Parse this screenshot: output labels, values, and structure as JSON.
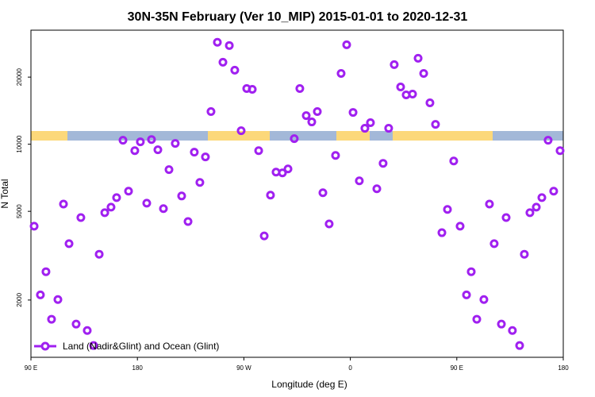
{
  "chart_data": {
    "type": "scatter",
    "title": "30N-35N February (Ver 10_MIP)   2015-01-01 to 2020-12-31",
    "x_label": "Longitude (deg E)",
    "y_label": "N Total",
    "x": [
      92.7,
      98.0,
      102.7,
      107.4,
      112.8,
      117.5,
      122.2,
      128.2,
      132.2,
      137.6,
      143.0,
      147.7,
      152.4,
      157.7,
      162.4,
      167.8,
      172.5,
      177.8,
      182.5,
      187.9,
      191.9,
      197.3,
      202.0,
      206.7,
      212.0,
      217.4,
      222.8,
      228.1,
      232.8,
      237.5,
      242.2,
      247.6,
      252.3,
      257.7,
      262.3,
      267.7,
      272.4,
      277.1,
      282.5,
      287.2,
      292.5,
      297.2,
      302.6,
      307.3,
      312.6,
      317.3,
      322.7,
      327.4,
      332.1,
      336.8,
      342.1,
      347.5,
      352.2,
      356.9,
      362.3,
      367.6,
      372.3,
      377.0,
      382.4,
      387.7,
      392.4,
      397.1,
      402.5,
      407.2,
      412.6,
      417.3,
      422.0,
      427.3,
      432.0,
      437.4,
      442.1,
      447.4,
      452.8,
      458.2,
      462.2,
      466.9,
      472.9,
      477.6,
      481.6,
      487.7,
      491.7,
      497.0,
      503.1,
      507.1,
      511.8,
      517.2,
      521.9,
      527.2,
      531.9,
      537.3
    ],
    "series": [
      {
        "name": "Land (Nadir&Glint) and Ocean (Glint)",
        "color": "#a020f0",
        "values": [
          4290,
          2110,
          2680,
          1640,
          2010,
          5390,
          3580,
          1560,
          4690,
          1460,
          1250,
          3210,
          4930,
          5220,
          5760,
          10420,
          6160,
          9360,
          10250,
          5440,
          10500,
          9440,
          5140,
          7690,
          10080,
          5860,
          4500,
          9210,
          6740,
          8770,
          14010,
          28660,
          23330,
          27720,
          21480,
          11500,
          17780,
          17630,
          9360,
          3880,
          5910,
          7500,
          7440,
          7750,
          10590,
          17780,
          13440,
          12590,
          14010,
          6060,
          4390,
          8910,
          20780,
          27930,
          13890,
          6850,
          11790,
          12490,
          6310,
          8210,
          11790,
          22760,
          18070,
          16650,
          16790,
          24310,
          20780,
          15340,
          12280,
          4010,
          5100,
          8410,
          4290,
          2110,
          2680,
          1640,
          2010,
          5390,
          3580,
          1560,
          4690,
          1460,
          1250,
          3210,
          4930,
          5220,
          5760,
          10420,
          6160,
          9360
        ]
      }
    ],
    "xlim": [
      90,
      540
    ],
    "xticks": [
      {
        "value": 90,
        "label": "90 E"
      },
      {
        "value": 180,
        "label": "180"
      },
      {
        "value": 270,
        "label": "90 W"
      },
      {
        "value": 360,
        "label": "0"
      },
      {
        "value": 450,
        "label": "90 E"
      },
      {
        "value": 540,
        "label": "180"
      }
    ],
    "ylim": [
      1107,
      32480
    ],
    "yticks": [
      2000,
      5000,
      10000,
      20000
    ],
    "yscale": "log",
    "legend": "lower left",
    "grid": false
  }
}
